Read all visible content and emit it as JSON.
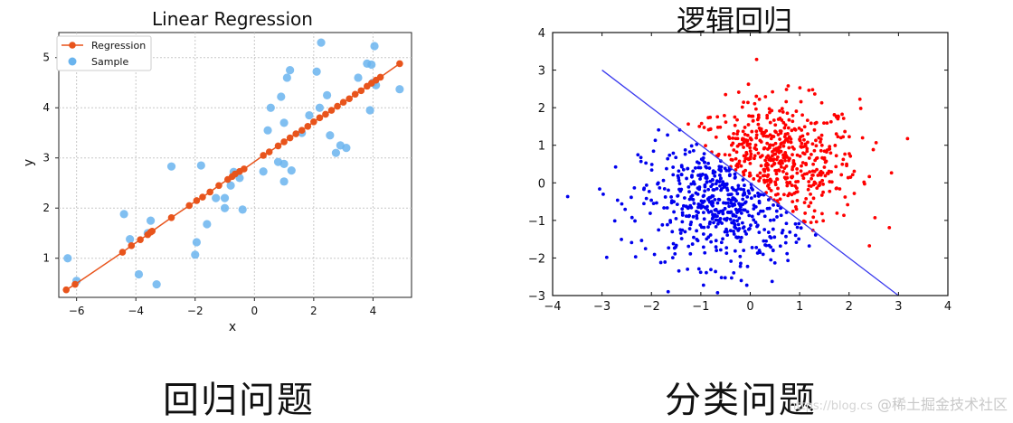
{
  "chart_data": [
    {
      "type": "scatter",
      "title": "Linear Regression",
      "xlabel": "x",
      "ylabel": "y",
      "xlim": [
        -6.6,
        5.3
      ],
      "ylim": [
        0.22,
        5.5
      ],
      "xticks": [
        -6,
        -4,
        -2,
        0,
        2,
        4
      ],
      "yticks": [
        1,
        2,
        3,
        4,
        5
      ],
      "xtick_labels": [
        "−6",
        "−4",
        "−2",
        "0",
        "2",
        "4"
      ],
      "ytick_labels": [
        "1",
        "2",
        "3",
        "4",
        "5"
      ],
      "grid": true,
      "legend_position": "top-left",
      "series": [
        {
          "name": "Regression",
          "kind": "line-with-markers",
          "color": "#e8541c",
          "points": [
            [
              -6.35,
              0.37
            ],
            [
              -6.05,
              0.48
            ],
            [
              -4.45,
              1.12
            ],
            [
              -4.15,
              1.25
            ],
            [
              -3.85,
              1.37
            ],
            [
              -3.6,
              1.47
            ],
            [
              -3.5,
              1.52
            ],
            [
              -3.45,
              1.54
            ],
            [
              -2.8,
              1.81
            ],
            [
              -2.2,
              2.05
            ],
            [
              -1.95,
              2.15
            ],
            [
              -1.75,
              2.22
            ],
            [
              -1.5,
              2.32
            ],
            [
              -1.2,
              2.45
            ],
            [
              -0.9,
              2.57
            ],
            [
              -0.75,
              2.63
            ],
            [
              -0.65,
              2.68
            ],
            [
              -0.5,
              2.73
            ],
            [
              -0.35,
              2.78
            ],
            [
              0.3,
              3.05
            ],
            [
              0.5,
              3.12
            ],
            [
              0.8,
              3.24
            ],
            [
              1.0,
              3.32
            ],
            [
              1.2,
              3.4
            ],
            [
              1.4,
              3.48
            ],
            [
              1.6,
              3.55
            ],
            [
              1.8,
              3.63
            ],
            [
              2.0,
              3.72
            ],
            [
              2.2,
              3.8
            ],
            [
              2.4,
              3.87
            ],
            [
              2.6,
              3.95
            ],
            [
              2.8,
              4.03
            ],
            [
              3.0,
              4.11
            ],
            [
              3.2,
              4.18
            ],
            [
              3.4,
              4.27
            ],
            [
              3.6,
              4.34
            ],
            [
              3.8,
              4.43
            ],
            [
              3.95,
              4.49
            ],
            [
              4.1,
              4.55
            ],
            [
              4.25,
              4.61
            ],
            [
              4.9,
              4.88
            ]
          ]
        },
        {
          "name": "Sample",
          "kind": "scatter",
          "color": "#6ab4ee",
          "points": [
            [
              -6.3,
              1.0
            ],
            [
              -6.0,
              0.55
            ],
            [
              -4.4,
              1.88
            ],
            [
              -4.2,
              1.38
            ],
            [
              -3.9,
              0.68
            ],
            [
              -3.5,
              1.75
            ],
            [
              -3.6,
              1.5
            ],
            [
              -3.3,
              0.48
            ],
            [
              -2.8,
              2.83
            ],
            [
              -2.0,
              1.07
            ],
            [
              -1.95,
              1.32
            ],
            [
              -1.8,
              2.85
            ],
            [
              -1.6,
              1.68
            ],
            [
              -1.3,
              2.2
            ],
            [
              -1.0,
              2.2
            ],
            [
              -1.0,
              2.0
            ],
            [
              -0.8,
              2.45
            ],
            [
              -0.7,
              2.72
            ],
            [
              -0.5,
              2.6
            ],
            [
              -0.4,
              1.97
            ],
            [
              0.3,
              2.73
            ],
            [
              0.45,
              3.55
            ],
            [
              0.55,
              4.0
            ],
            [
              0.8,
              2.92
            ],
            [
              0.9,
              4.22
            ],
            [
              1.0,
              2.88
            ],
            [
              1.0,
              3.7
            ],
            [
              1.0,
              2.53
            ],
            [
              1.1,
              4.6
            ],
            [
              1.2,
              4.75
            ],
            [
              1.25,
              2.75
            ],
            [
              1.6,
              3.5
            ],
            [
              1.85,
              3.85
            ],
            [
              2.1,
              4.72
            ],
            [
              2.25,
              5.3
            ],
            [
              2.2,
              4.0
            ],
            [
              2.45,
              4.25
            ],
            [
              2.55,
              3.45
            ],
            [
              2.75,
              3.1
            ],
            [
              2.9,
              3.25
            ],
            [
              3.1,
              3.2
            ],
            [
              3.5,
              4.6
            ],
            [
              3.8,
              4.88
            ],
            [
              3.9,
              3.95
            ],
            [
              3.95,
              4.86
            ],
            [
              4.05,
              5.23
            ],
            [
              4.1,
              4.45
            ],
            [
              4.9,
              4.37
            ],
            [
              4.0,
              4.5
            ]
          ]
        }
      ]
    },
    {
      "type": "scatter",
      "title": "逻辑回归",
      "xlim": [
        -4,
        4
      ],
      "ylim": [
        -3,
        4
      ],
      "xticks": [
        -4,
        -3,
        -2,
        -1,
        0,
        1,
        2,
        3,
        4
      ],
      "yticks": [
        -3,
        -2,
        -1,
        0,
        1,
        2,
        3,
        4
      ],
      "xtick_labels": [
        "−4",
        "−3",
        "−2",
        "−1",
        "0",
        "1",
        "2",
        "3",
        "4"
      ],
      "ytick_labels": [
        "−3",
        "−2",
        "−1",
        "0",
        "1",
        "2",
        "3",
        "4"
      ],
      "grid": false,
      "decision_boundary": {
        "color": "#3a3aee",
        "from": [
          -3,
          3
        ],
        "to": [
          3,
          -3
        ]
      },
      "series": [
        {
          "color": "#ff0000",
          "center": [
            0.5,
            0.5
          ],
          "spread": 0.85,
          "count": 520,
          "side": "above-boundary"
        },
        {
          "color": "#0000ee",
          "center": [
            -0.5,
            -0.5
          ],
          "spread": 0.85,
          "count": 520,
          "side": "below-boundary"
        }
      ]
    }
  ],
  "captions": {
    "left": "回归问题",
    "right": "分类问题"
  },
  "watermark": {
    "url": "https://blog.cs",
    "brand": "@稀土掘金技术社区"
  }
}
